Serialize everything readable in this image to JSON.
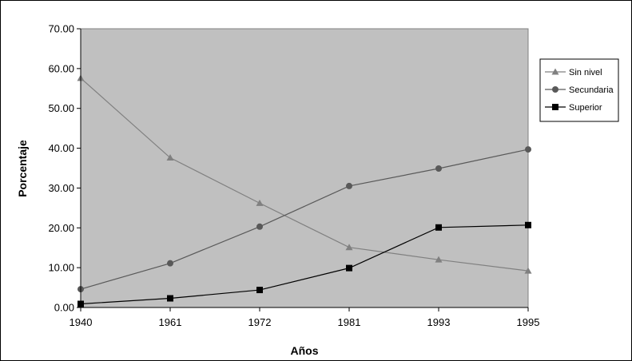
{
  "chart_data": {
    "type": "line",
    "title": "",
    "xlabel": "Años",
    "ylabel": "Porcentaje",
    "categories": [
      "1940",
      "1961",
      "1972",
      "1981",
      "1993",
      "1995"
    ],
    "ylim": [
      0,
      70
    ],
    "yticks": [
      "0.00",
      "10.00",
      "20.00",
      "30.00",
      "40.00",
      "50.00",
      "60.00",
      "70.00"
    ],
    "grid": false,
    "legend_position": "right",
    "plot_background": "#c0c0c0",
    "series": [
      {
        "name": "Sin nivel",
        "marker": "triangle",
        "color": "#808080",
        "values": [
          57.6,
          37.6,
          26.2,
          15.1,
          12.0,
          9.2
        ]
      },
      {
        "name": "Secundaria",
        "marker": "circle",
        "color": "#595959",
        "values": [
          4.6,
          11.1,
          20.3,
          30.5,
          34.9,
          39.7
        ]
      },
      {
        "name": "Superior",
        "marker": "square",
        "color": "#000000",
        "values": [
          0.9,
          2.3,
          4.4,
          9.9,
          20.1,
          20.7
        ]
      }
    ]
  }
}
